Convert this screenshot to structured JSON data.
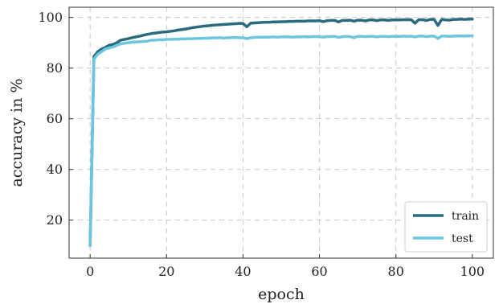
{
  "chart_data": {
    "type": "line",
    "title": "",
    "xlabel": "epoch",
    "ylabel": "accuracy in %",
    "xlim": [
      -5.5,
      105.5
    ],
    "ylim": [
      5,
      104
    ],
    "xticks": [
      0,
      20,
      40,
      60,
      80,
      100
    ],
    "yticks": [
      20,
      40,
      60,
      80,
      100
    ],
    "grid": true,
    "legend_position": "lower-right",
    "x": [
      0,
      1,
      2,
      3,
      4,
      5,
      6,
      7,
      8,
      9,
      10,
      11,
      12,
      13,
      14,
      15,
      16,
      17,
      18,
      19,
      20,
      21,
      22,
      23,
      24,
      25,
      26,
      27,
      28,
      29,
      30,
      31,
      32,
      33,
      34,
      35,
      36,
      37,
      38,
      39,
      40,
      41,
      42,
      43,
      44,
      45,
      46,
      47,
      48,
      49,
      50,
      51,
      52,
      53,
      54,
      55,
      56,
      57,
      58,
      59,
      60,
      61,
      62,
      63,
      64,
      65,
      66,
      67,
      68,
      69,
      70,
      71,
      72,
      73,
      74,
      75,
      76,
      77,
      78,
      79,
      80,
      81,
      82,
      83,
      84,
      85,
      86,
      87,
      88,
      89,
      90,
      91,
      92,
      93,
      94,
      95,
      96,
      97,
      98,
      99,
      100
    ],
    "series": [
      {
        "name": "train",
        "color": "#2b6b80",
        "values": [
          10,
          84.5,
          86.5,
          87.5,
          88.2,
          89,
          89.3,
          90,
          91,
          91.3,
          91.6,
          92,
          92.3,
          92.6,
          93,
          93.3,
          93.6,
          93.8,
          94,
          94.2,
          94.3,
          94.5,
          94.7,
          95,
          95.2,
          95.4,
          95.7,
          96,
          96.2,
          96.4,
          96.6,
          96.7,
          96.9,
          97,
          97.1,
          97.2,
          97.3,
          97.4,
          97.5,
          97.6,
          97.6,
          96.3,
          97.7,
          97.8,
          97.9,
          98,
          98.1,
          98.1,
          98.2,
          98.2,
          98.3,
          98.3,
          98.4,
          98.4,
          98.5,
          98.5,
          98.5,
          98.6,
          98.6,
          98.6,
          98.7,
          98.3,
          98.7,
          98.8,
          98.8,
          98.2,
          98.8,
          98.8,
          98.9,
          98.5,
          98.9,
          98.9,
          98.6,
          99,
          99,
          98.7,
          99,
          99,
          98.8,
          99,
          99,
          99,
          99.1,
          99.1,
          99.1,
          97.7,
          99.1,
          99.1,
          98.8,
          99.2,
          99.2,
          96.8,
          99.2,
          99,
          98.9,
          99.2,
          99.2,
          99.3,
          99.2,
          99.3,
          99.3
        ]
      },
      {
        "name": "test",
        "color": "#6cc6df",
        "values": [
          10,
          83.5,
          85.5,
          86.5,
          87.5,
          88,
          88.3,
          89,
          89.5,
          89.8,
          90,
          90.2,
          90.3,
          90.4,
          90.5,
          90.6,
          91,
          91,
          91.2,
          91.2,
          91.3,
          91.3,
          91.4,
          91.4,
          91.5,
          91.5,
          91.6,
          91.6,
          91.7,
          91.7,
          91.8,
          91.8,
          91.9,
          91.9,
          92,
          91.8,
          92,
          92,
          92.1,
          92,
          92,
          91.6,
          92,
          92.1,
          92.2,
          92.2,
          92.2,
          92.2,
          92.3,
          92.2,
          92.3,
          92.3,
          92.3,
          92.2,
          92.3,
          92.3,
          92.4,
          92.3,
          92.4,
          92.4,
          92.4,
          92.2,
          92.4,
          92.4,
          92.5,
          92.1,
          92.4,
          92.5,
          92.4,
          92,
          92.5,
          92.5,
          92.4,
          92.5,
          92.5,
          92.3,
          92.5,
          92.5,
          92.4,
          92.5,
          92.5,
          92.5,
          92.6,
          92.5,
          92.6,
          92.3,
          92.6,
          92.6,
          92.4,
          92.6,
          92.6,
          91.7,
          92.6,
          92.6,
          92.5,
          92.6,
          92.6,
          92.7,
          92.6,
          92.7,
          92.7
        ]
      }
    ]
  }
}
